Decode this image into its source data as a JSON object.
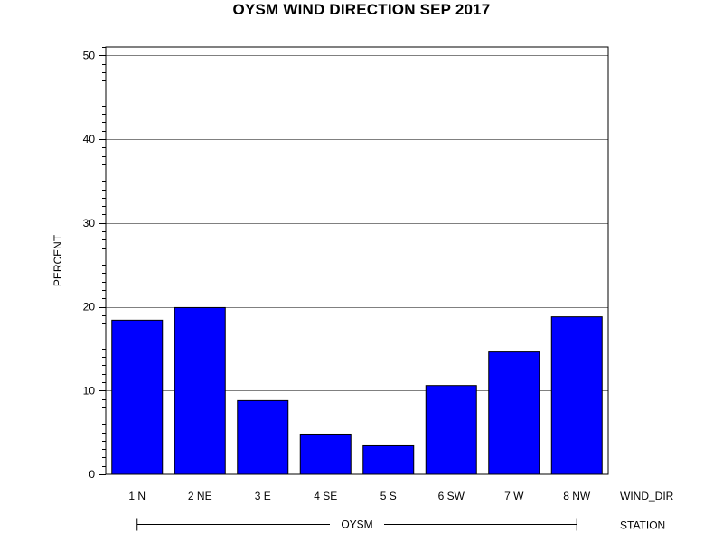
{
  "chart_data": {
    "type": "bar",
    "title": "OYSM WIND DIRECTION SEP 2017",
    "ylabel": "PERCENT",
    "xlabel": "WIND_DIR",
    "group_label": "STATION",
    "group_value": "OYSM",
    "categories": [
      "1 N",
      "2 NE",
      "3 E",
      "4 SE",
      "5 S",
      "6 SW",
      "7 W",
      "8 NW"
    ],
    "values": [
      18.4,
      19.9,
      8.8,
      4.8,
      3.4,
      10.6,
      14.6,
      18.8
    ],
    "ylim": [
      0,
      51
    ],
    "yticks": [
      0,
      10,
      20,
      30,
      40,
      50
    ],
    "grid": true,
    "bar_color": "#0000ff",
    "bar_edge_color": "#000000"
  }
}
